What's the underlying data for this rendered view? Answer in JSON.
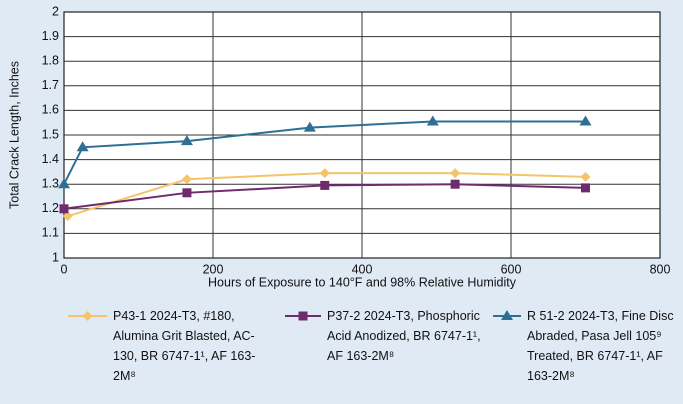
{
  "chart_data": {
    "type": "line",
    "xlabel": "Hours of Exposure to 140°F and 98% Relative Humidity",
    "ylabel": "Total Crack Length, Inches",
    "xlim": [
      0,
      800
    ],
    "xticks": [
      0,
      200,
      400,
      600,
      800
    ],
    "ylim": [
      1,
      2
    ],
    "yticks": [
      1,
      1.1,
      1.2,
      1.3,
      1.4,
      1.5,
      1.6,
      1.7,
      1.8,
      1.9,
      2
    ],
    "grid": true,
    "series": [
      {
        "name": "P43-1 2024-T3, #180, Alumina Grit Blasted, AC-130, BR 6747-1¹, AF 163-2M⁸",
        "color": "#f5c46a",
        "marker": "diamond",
        "x": [
          5,
          165,
          350,
          525,
          700
        ],
        "values": [
          1.17,
          1.32,
          1.345,
          1.345,
          1.33
        ]
      },
      {
        "name": "P37-2 2024-T3, Phosphoric Acid Anodized, BR 6747-1¹, AF 163-2M⁸",
        "color": "#6e2c6e",
        "marker": "square",
        "x": [
          0,
          165,
          350,
          525,
          700
        ],
        "values": [
          1.2,
          1.265,
          1.295,
          1.3,
          1.285
        ]
      },
      {
        "name": "R 51-2 2024-T3, Fine Disc Abraded, Pasa Jell 105⁹ Treated, BR 6747-1¹, AF 163-2M⁸",
        "color": "#2f6f96",
        "marker": "triangle",
        "x": [
          0,
          25,
          165,
          330,
          495,
          700
        ],
        "values": [
          1.3,
          1.45,
          1.475,
          1.53,
          1.555,
          1.555
        ]
      }
    ]
  }
}
